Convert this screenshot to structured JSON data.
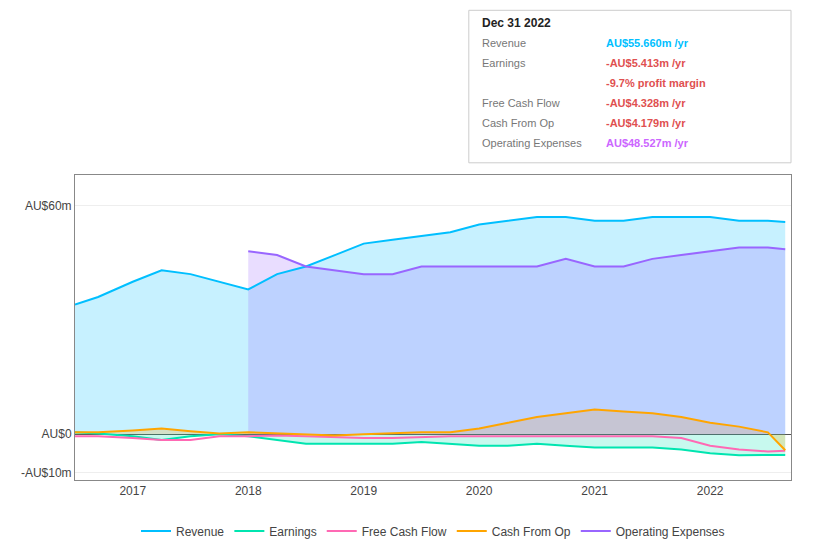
{
  "chart_data": {
    "type": "line",
    "x": [
      2016.5,
      2016.7,
      2017.0,
      2017.25,
      2017.5,
      2017.75,
      2018.0,
      2018.25,
      2018.5,
      2018.75,
      2019.0,
      2019.25,
      2019.5,
      2019.75,
      2020.0,
      2020.25,
      2020.5,
      2020.75,
      2021.0,
      2021.25,
      2021.5,
      2021.75,
      2022.0,
      2022.25,
      2022.5,
      2022.65
    ],
    "series": [
      {
        "name": "Revenue",
        "color": "#00bfff",
        "type": "area",
        "values": [
          34,
          36,
          40,
          43,
          42,
          40,
          38,
          42,
          44,
          47,
          50,
          51,
          52,
          53,
          55,
          56,
          57,
          57,
          56,
          56,
          57,
          57,
          57,
          56,
          56,
          55.66
        ]
      },
      {
        "name": "Earnings",
        "color": "#00e5b0",
        "type": "area",
        "values": [
          0.5,
          0.2,
          -0.5,
          -1.5,
          -0.5,
          0,
          -0.5,
          -1.5,
          -2.5,
          -2.5,
          -2.5,
          -2.5,
          -2.0,
          -2.5,
          -3.0,
          -3.0,
          -2.5,
          -3.0,
          -3.5,
          -3.5,
          -3.5,
          -4.0,
          -5.0,
          -5.5,
          -5.5,
          -5.413
        ]
      },
      {
        "name": "Free Cash Flow",
        "color": "#ff69b4",
        "type": "line",
        "values": [
          -0.5,
          -0.5,
          -1.0,
          -1.5,
          -1.5,
          -0.5,
          -0.5,
          -0.3,
          -0.5,
          -0.8,
          -1.0,
          -1.0,
          -0.8,
          -0.5,
          -0.5,
          -0.5,
          -0.5,
          -0.5,
          -0.5,
          -0.5,
          -0.5,
          -1.0,
          -3.0,
          -4.0,
          -4.5,
          -4.328
        ]
      },
      {
        "name": "Cash From Op",
        "color": "#ffa500",
        "type": "area",
        "values": [
          0.5,
          0.5,
          1.0,
          1.5,
          0.8,
          0.2,
          0.5,
          0.2,
          0.0,
          -0.3,
          0.0,
          0.3,
          0.5,
          0.5,
          1.5,
          3.0,
          4.5,
          5.5,
          6.5,
          6.0,
          5.5,
          4.5,
          3.0,
          2.0,
          0.5,
          -4.179
        ]
      },
      {
        "name": "Operating Expenses",
        "color": "#9966ff",
        "type": "area",
        "values": [
          null,
          null,
          null,
          null,
          null,
          null,
          48,
          47,
          44,
          43,
          42,
          42,
          44,
          44,
          44,
          44,
          44,
          46,
          44,
          44,
          46,
          47,
          48,
          49,
          49,
          48.527
        ]
      }
    ],
    "xlim": [
      2016.5,
      2022.7
    ],
    "xticks": [
      2017,
      2018,
      2019,
      2020,
      2021,
      2022
    ],
    "ylim": [
      -12,
      68
    ],
    "yticks": [
      {
        "value": 60,
        "label": "AU$60m"
      },
      {
        "value": 0,
        "label": "AU$0"
      },
      {
        "value": -10,
        "label": "-AU$10m"
      }
    ],
    "grid": "y",
    "legend": "bottom",
    "annotations": {
      "title": "Dec 31 2022",
      "rows": [
        {
          "label": "Revenue",
          "value": "AU$55.660m /yr",
          "color": "#00bfff"
        },
        {
          "label": "Earnings",
          "value": "-AU$5.413m /yr",
          "color": "#e05050"
        },
        {
          "value": "-9.7% profit margin",
          "color": "#e05050"
        },
        {
          "label": "Free Cash Flow",
          "value": "-AU$4.328m /yr",
          "color": "#e05050"
        },
        {
          "label": "Cash From Op",
          "value": "-AU$4.179m /yr",
          "color": "#e05050"
        },
        {
          "label": "Operating Expenses",
          "value": "AU$48.527m /yr",
          "color": "#cc66ff"
        }
      ]
    }
  }
}
